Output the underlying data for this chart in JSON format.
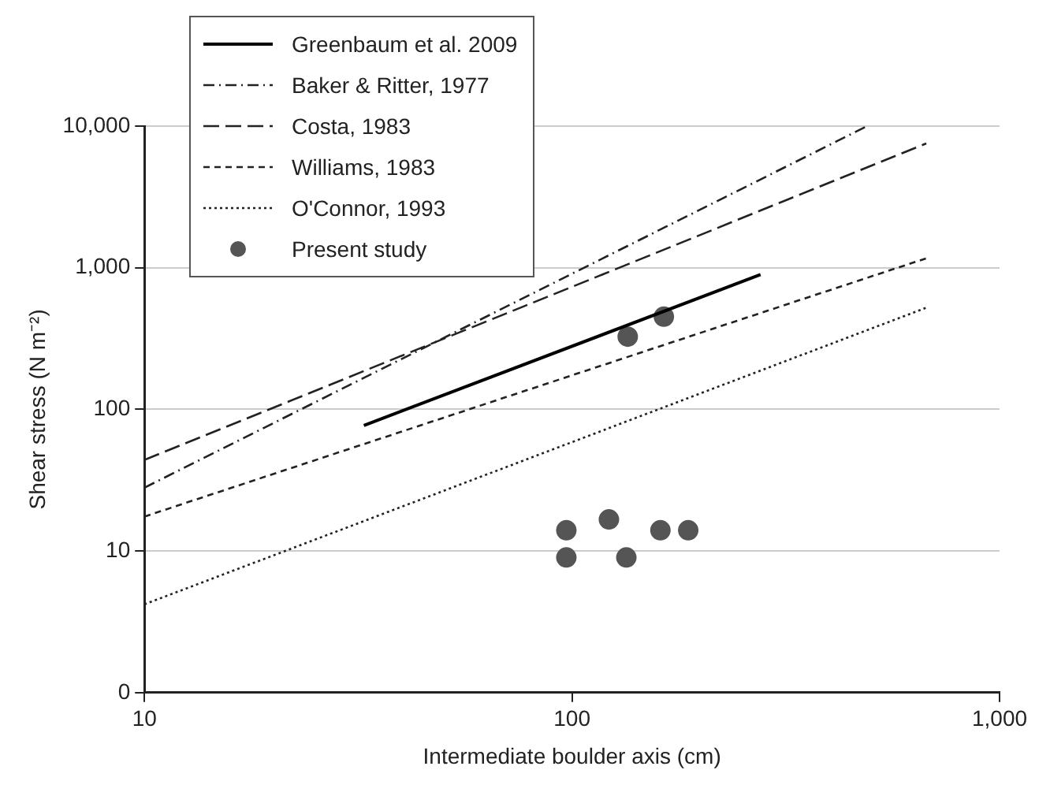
{
  "chart_data": {
    "type": "line",
    "xlabel": "Intermediate boulder axis (cm)",
    "ylabel": "Shear stress (N m⁻²)",
    "log": "xy",
    "xlim": [
      10,
      1000
    ],
    "ylim": [
      0,
      10000
    ],
    "xticks": [
      10,
      100,
      {
        "value": 1000,
        "label": "1,000"
      }
    ],
    "yticks": [
      0,
      10,
      100,
      {
        "value": 1000,
        "label": "1,000"
      },
      {
        "value": 10000,
        "label": "10,000"
      }
    ],
    "grid": "y",
    "legend": "top left",
    "series": [
      {
        "name": "Greenbaum et al. 2009",
        "color": "#000000",
        "line_style": "solid",
        "marker": "none",
        "x": [
          32.6,
          276
        ],
        "values": [
          77,
          895
        ]
      },
      {
        "name": "Baker & Ritter, 1977",
        "color": "#222222",
        "line_style": "dashed",
        "marker": "none",
        "x": [
          10,
          490
        ],
        "values": [
          28,
          10000
        ]
      },
      {
        "name": "Costa, 1983",
        "color": "#222222",
        "line_style": "dashed",
        "marker": "none",
        "x": [
          10,
          674
        ],
        "values": [
          44,
          7540
        ]
      },
      {
        "name": "Williams, 1983",
        "color": "#222222",
        "line_style": "dashed",
        "marker": "none",
        "x": [
          10,
          674
        ],
        "values": [
          17.5,
          1166
        ]
      },
      {
        "name": "O'Connor, 1993",
        "color": "#222222",
        "line_style": "dotted",
        "marker": "none",
        "x": [
          10,
          674
        ],
        "values": [
          4.2,
          522
        ]
      },
      {
        "name": "Present study",
        "type": "scatter",
        "color": "#555555",
        "marker": "circle",
        "x": [
          97,
          97,
          122,
          134,
          161,
          187,
          135,
          164
        ],
        "values": [
          14,
          9,
          16.7,
          9,
          14,
          14,
          326,
          451
        ]
      }
    ]
  }
}
